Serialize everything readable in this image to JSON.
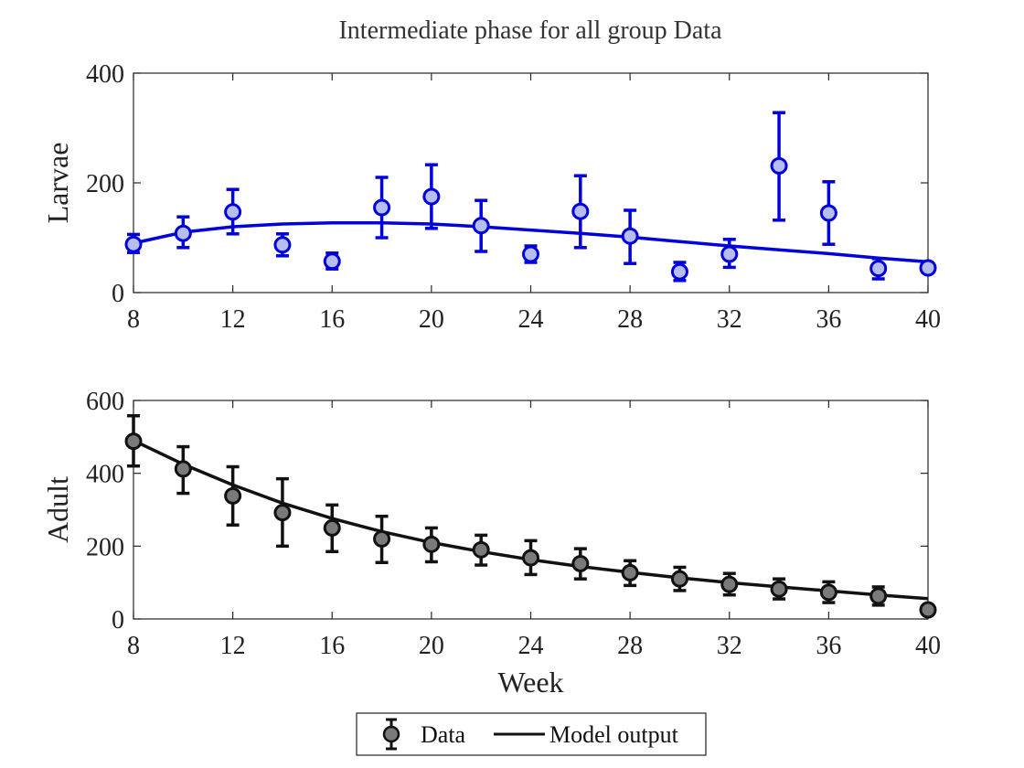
{
  "figure": {
    "title": "Intermediate phase for all group Data"
  },
  "colors": {
    "larvae": "#0000dd",
    "larvae_fill": "#b8bdf0",
    "adult": "#111111",
    "adult_fill": "#7a7a7a"
  },
  "legend": {
    "data_label": "Data",
    "model_label": "Model output",
    "placement": "bottom-center"
  },
  "chart_data": [
    {
      "type": "scatter",
      "title": "Intermediate phase for all group Data",
      "ylabel": "Larvae",
      "xlabel": "",
      "xlim": [
        8,
        40
      ],
      "ylim": [
        0,
        400
      ],
      "xticks": [
        8,
        12,
        16,
        20,
        24,
        28,
        32,
        36,
        40
      ],
      "yticks": [
        0,
        200,
        400
      ],
      "grid": false,
      "series": [
        {
          "name": "Data",
          "kind": "errorbar",
          "x": [
            8,
            10,
            12,
            14,
            16,
            18,
            20,
            22,
            24,
            26,
            28,
            30,
            32,
            34,
            36,
            38,
            40
          ],
          "y": [
            88,
            108,
            147,
            87,
            57,
            155,
            175,
            122,
            70,
            148,
            103,
            38,
            70,
            231,
            145,
            44,
            45
          ],
          "lower": [
            73,
            82,
            107,
            67,
            43,
            100,
            117,
            75,
            55,
            82,
            53,
            22,
            46,
            132,
            88,
            25,
            38
          ],
          "upper": [
            106,
            138,
            188,
            107,
            72,
            210,
            233,
            168,
            85,
            213,
            150,
            55,
            97,
            328,
            202,
            62,
            50
          ]
        },
        {
          "name": "Model output",
          "kind": "line",
          "x": [
            8,
            10,
            12,
            14,
            16,
            18,
            20,
            22,
            24,
            26,
            28,
            30,
            32,
            34,
            36,
            38,
            40
          ],
          "y": [
            90,
            110,
            120,
            125,
            127,
            127,
            125,
            120,
            114,
            108,
            101,
            93,
            85,
            78,
            71,
            63,
            56
          ]
        }
      ]
    },
    {
      "type": "scatter",
      "ylabel": "Adult",
      "xlabel": "Week",
      "xlim": [
        8,
        40
      ],
      "ylim": [
        0,
        600
      ],
      "xticks": [
        8,
        12,
        16,
        20,
        24,
        28,
        32,
        36,
        40
      ],
      "yticks": [
        0,
        200,
        400,
        600
      ],
      "grid": false,
      "series": [
        {
          "name": "Data",
          "kind": "errorbar",
          "x": [
            8,
            10,
            12,
            14,
            16,
            18,
            20,
            22,
            24,
            26,
            28,
            30,
            32,
            34,
            36,
            38,
            40
          ],
          "y": [
            488,
            412,
            338,
            292,
            250,
            220,
            205,
            190,
            168,
            152,
            127,
            110,
            95,
            82,
            73,
            63,
            25
          ],
          "lower": [
            420,
            345,
            258,
            200,
            185,
            155,
            157,
            148,
            122,
            110,
            92,
            78,
            66,
            55,
            45,
            38,
            18
          ],
          "upper": [
            558,
            473,
            418,
            385,
            313,
            282,
            250,
            230,
            215,
            193,
            160,
            142,
            125,
            110,
            102,
            88,
            32
          ]
        },
        {
          "name": "Model output",
          "kind": "line",
          "x": [
            8,
            10,
            12,
            14,
            16,
            18,
            20,
            22,
            24,
            26,
            28,
            30,
            32,
            34,
            36,
            38,
            40
          ],
          "y": [
            490,
            425,
            368,
            318,
            276,
            240,
            210,
            185,
            163,
            144,
            128,
            113,
            100,
            88,
            77,
            66,
            56
          ]
        }
      ]
    }
  ]
}
